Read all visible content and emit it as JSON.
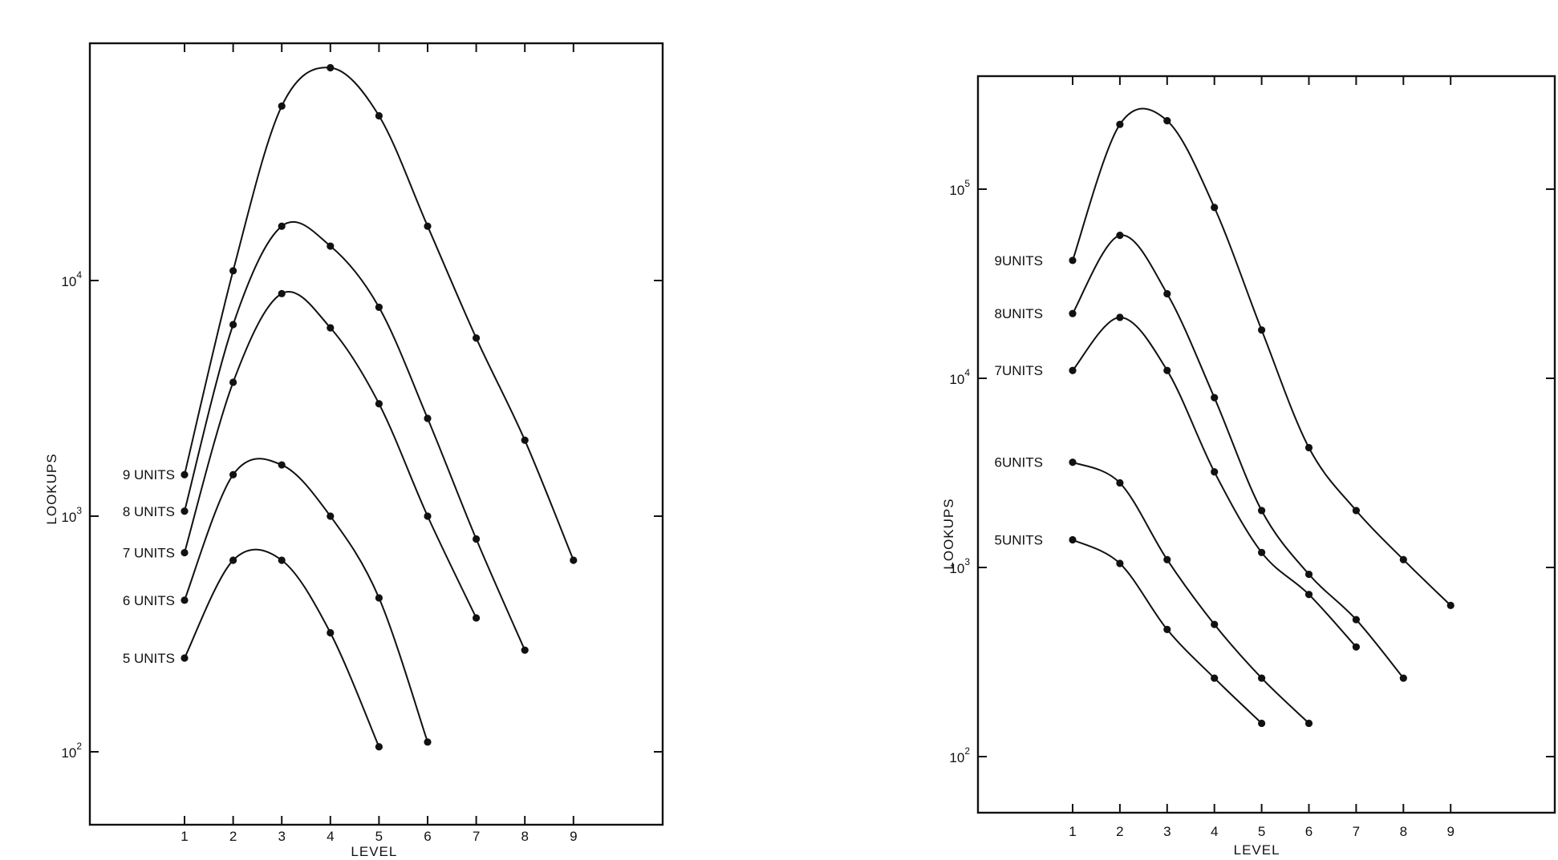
{
  "chart_data": [
    {
      "type": "line",
      "xlabel": "LEVEL",
      "ylabel": "LOOKUPS",
      "y_scale": "log",
      "grid": false,
      "x_ticks": [
        "1",
        "2",
        "3",
        "4",
        "5",
        "6",
        "7",
        "8",
        "9"
      ],
      "y_ticks": [
        {
          "value": 100,
          "base": "10",
          "exp": "2"
        },
        {
          "value": 1000,
          "base": "10",
          "exp": "3"
        },
        {
          "value": 10000,
          "base": "10",
          "exp": "4"
        }
      ],
      "series": [
        {
          "name": "9 UNITS",
          "x": [
            1,
            2,
            3,
            4,
            5,
            6,
            7,
            8,
            9
          ],
          "y": [
            1500,
            11000,
            55000,
            80000,
            50000,
            17000,
            5700,
            2100,
            650
          ]
        },
        {
          "name": "8 UNITS",
          "x": [
            1,
            2,
            3,
            4,
            5,
            6,
            7,
            8
          ],
          "y": [
            1050,
            6500,
            17000,
            14000,
            7700,
            2600,
            800,
            270
          ]
        },
        {
          "name": "7 UNITS",
          "x": [
            1,
            2,
            3,
            4,
            5,
            6,
            7
          ],
          "y": [
            700,
            3700,
            8800,
            6300,
            3000,
            1000,
            370
          ]
        },
        {
          "name": "6 UNITS",
          "x": [
            1,
            2,
            3,
            4,
            5,
            6
          ],
          "y": [
            440,
            1500,
            1650,
            1000,
            450,
            110
          ]
        },
        {
          "name": "5 UNITS",
          "x": [
            1,
            2,
            3,
            4,
            5
          ],
          "y": [
            250,
            650,
            650,
            320,
            105
          ]
        }
      ]
    },
    {
      "type": "line",
      "xlabel": "LEVEL",
      "ylabel": "LOOKUPS",
      "y_scale": "log",
      "grid": false,
      "x_ticks": [
        "1",
        "2",
        "3",
        "4",
        "5",
        "6",
        "7",
        "8",
        "9"
      ],
      "y_ticks": [
        {
          "value": 100,
          "base": "10",
          "exp": "2"
        },
        {
          "value": 1000,
          "base": "10",
          "exp": "3"
        },
        {
          "value": 10000,
          "base": "10",
          "exp": "4"
        },
        {
          "value": 100000,
          "base": "10",
          "exp": "5"
        }
      ],
      "series": [
        {
          "name": "9UNITS",
          "x": [
            1,
            2,
            3,
            4,
            5,
            6,
            7,
            8,
            9
          ],
          "y": [
            42000,
            220000,
            230000,
            80000,
            18000,
            4300,
            2000,
            1100,
            630
          ]
        },
        {
          "name": "8UNITS",
          "x": [
            1,
            2,
            3,
            4,
            5,
            6,
            7,
            8
          ],
          "y": [
            22000,
            57000,
            28000,
            7900,
            2000,
            920,
            530,
            260
          ]
        },
        {
          "name": "7UNITS",
          "x": [
            1,
            2,
            3,
            4,
            5,
            6,
            7
          ],
          "y": [
            11000,
            21000,
            11000,
            3200,
            1200,
            720,
            380
          ]
        },
        {
          "name": "6UNITS",
          "x": [
            1,
            2,
            3,
            4,
            5,
            6
          ],
          "y": [
            3600,
            2800,
            1100,
            500,
            260,
            150
          ]
        },
        {
          "name": "5UNITS",
          "x": [
            1,
            2,
            3,
            4,
            5
          ],
          "y": [
            1400,
            1050,
            470,
            260,
            150
          ]
        }
      ]
    }
  ]
}
